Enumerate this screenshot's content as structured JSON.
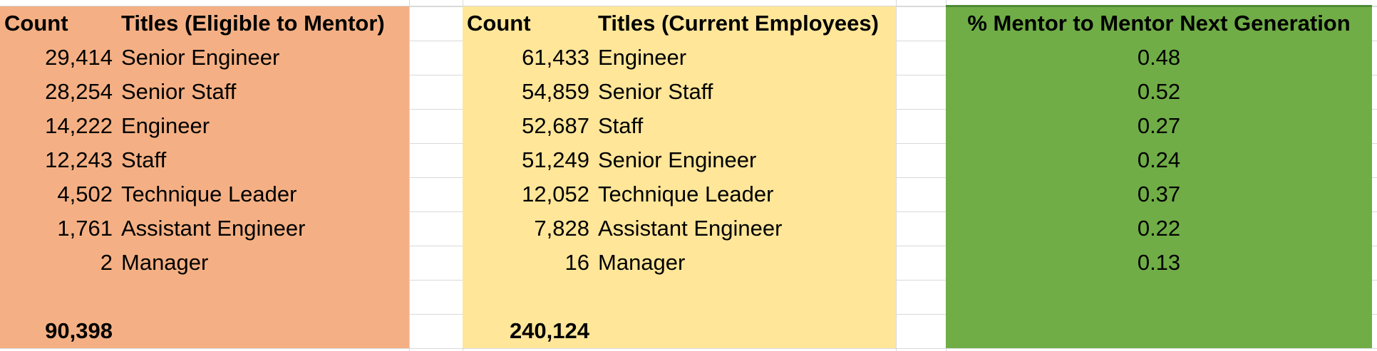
{
  "mentor_table": {
    "count_header": "Count",
    "titles_header": "Titles (Eligible to Mentor)",
    "rows": [
      {
        "count": "29,414",
        "title": "Senior Engineer"
      },
      {
        "count": "28,254",
        "title": "Senior Staff"
      },
      {
        "count": "14,222",
        "title": "Engineer"
      },
      {
        "count": "12,243",
        "title": "Staff"
      },
      {
        "count": "4,502",
        "title": "Technique Leader"
      },
      {
        "count": "1,761",
        "title": "Assistant Engineer"
      },
      {
        "count": "2",
        "title": "Manager"
      }
    ],
    "total": "90,398",
    "color": "#f4b084"
  },
  "employee_table": {
    "count_header": "Count",
    "titles_header": "Titles (Current Employees)",
    "rows": [
      {
        "count": "61,433",
        "title": "Engineer"
      },
      {
        "count": "54,859",
        "title": "Senior Staff"
      },
      {
        "count": "52,687",
        "title": "Staff"
      },
      {
        "count": "51,249",
        "title": "Senior Engineer"
      },
      {
        "count": "12,052",
        "title": "Technique Leader"
      },
      {
        "count": "7,828",
        "title": "Assistant Engineer"
      },
      {
        "count": "16",
        "title": "Manager"
      }
    ],
    "total": "240,124",
    "color": "#ffe699"
  },
  "ratio_table": {
    "header": "% Mentor to Mentor Next Generation",
    "values": [
      "0.48",
      "0.52",
      "0.27",
      "0.24",
      "0.37",
      "0.22",
      "0.13"
    ],
    "color": "#70ad47"
  }
}
